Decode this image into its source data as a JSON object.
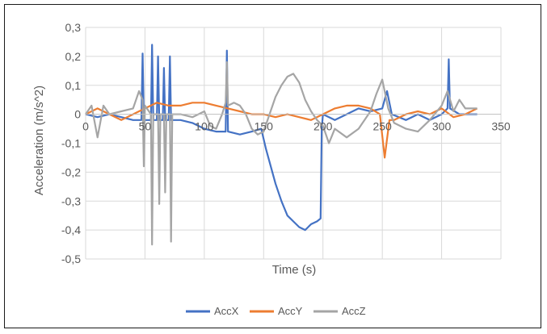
{
  "colors": {
    "AccX": "#4472C4",
    "AccY": "#ED7D31",
    "AccZ": "#A5A5A5",
    "grid": "#D9D9D9",
    "axis": "#BFBFBF"
  },
  "chart_data": {
    "type": "line",
    "title": "",
    "xlabel": "Time (s)",
    "ylabel": "Acceleration (m/s^2)",
    "xlim": [
      0,
      350
    ],
    "ylim": [
      -0.5,
      0.3
    ],
    "x_ticks": [
      0,
      50,
      100,
      150,
      200,
      250,
      300,
      350
    ],
    "x_tick_labels": [
      "0",
      "50",
      "100",
      "150",
      "200",
      "250",
      "300",
      "350"
    ],
    "y_ticks": [
      0.3,
      0.2,
      0.1,
      0,
      -0.1,
      -0.2,
      -0.3,
      -0.4,
      -0.5
    ],
    "y_tick_labels": [
      "0,3",
      "0,2",
      "0,1",
      "0",
      "-0,1",
      "-0,2",
      "-0,3",
      "-0,4",
      "-0,5"
    ],
    "grid": true,
    "legend_position": "bottom",
    "series": [
      {
        "name": "AccX",
        "color": "#4472C4",
        "points": [
          [
            0,
            0.0
          ],
          [
            10,
            -0.01
          ],
          [
            20,
            0.0
          ],
          [
            30,
            -0.01
          ],
          [
            40,
            -0.02
          ],
          [
            47,
            -0.02
          ],
          [
            48,
            0.21
          ],
          [
            49,
            -0.02
          ],
          [
            55,
            -0.02
          ],
          [
            56,
            0.24
          ],
          [
            57,
            -0.02
          ],
          [
            60,
            -0.02
          ],
          [
            61,
            0.2
          ],
          [
            62,
            -0.02
          ],
          [
            65,
            -0.02
          ],
          [
            66,
            0.16
          ],
          [
            67,
            -0.02
          ],
          [
            70,
            -0.02
          ],
          [
            71,
            0.2
          ],
          [
            72,
            -0.02
          ],
          [
            80,
            -0.02
          ],
          [
            90,
            -0.03
          ],
          [
            100,
            -0.05
          ],
          [
            110,
            -0.06
          ],
          [
            118,
            -0.06
          ],
          [
            119,
            0.22
          ],
          [
            120,
            -0.06
          ],
          [
            130,
            -0.07
          ],
          [
            140,
            -0.06
          ],
          [
            148,
            -0.05
          ],
          [
            152,
            -0.12
          ],
          [
            156,
            -0.18
          ],
          [
            160,
            -0.24
          ],
          [
            165,
            -0.3
          ],
          [
            170,
            -0.35
          ],
          [
            175,
            -0.37
          ],
          [
            180,
            -0.39
          ],
          [
            185,
            -0.4
          ],
          [
            190,
            -0.38
          ],
          [
            195,
            -0.37
          ],
          [
            198,
            -0.36
          ],
          [
            199,
            -0.05
          ],
          [
            200,
            0.0
          ],
          [
            210,
            -0.02
          ],
          [
            220,
            0.0
          ],
          [
            230,
            0.02
          ],
          [
            240,
            0.01
          ],
          [
            250,
            0.02
          ],
          [
            254,
            0.08
          ],
          [
            258,
            0.0
          ],
          [
            270,
            -0.02
          ],
          [
            280,
            0.0
          ],
          [
            290,
            -0.02
          ],
          [
            300,
            0.0
          ],
          [
            305,
            0.02
          ],
          [
            306,
            0.19
          ],
          [
            307,
            0.02
          ],
          [
            315,
            0.0
          ],
          [
            320,
            0.0
          ],
          [
            330,
            0.0
          ]
        ]
      },
      {
        "name": "AccY",
        "color": "#ED7D31",
        "points": [
          [
            0,
            0.0
          ],
          [
            10,
            0.02
          ],
          [
            20,
            0.0
          ],
          [
            30,
            -0.02
          ],
          [
            40,
            0.0
          ],
          [
            50,
            0.02
          ],
          [
            60,
            0.04
          ],
          [
            70,
            0.03
          ],
          [
            80,
            0.03
          ],
          [
            90,
            0.04
          ],
          [
            100,
            0.04
          ],
          [
            110,
            0.03
          ],
          [
            120,
            0.02
          ],
          [
            130,
            0.01
          ],
          [
            140,
            0.0
          ],
          [
            150,
            0.0
          ],
          [
            160,
            -0.01
          ],
          [
            170,
            0.0
          ],
          [
            180,
            -0.01
          ],
          [
            190,
            -0.02
          ],
          [
            200,
            0.0
          ],
          [
            210,
            0.02
          ],
          [
            220,
            0.03
          ],
          [
            230,
            0.03
          ],
          [
            240,
            0.02
          ],
          [
            248,
            0.0
          ],
          [
            252,
            -0.15
          ],
          [
            256,
            -0.02
          ],
          [
            260,
            -0.02
          ],
          [
            270,
            0.0
          ],
          [
            280,
            0.01
          ],
          [
            290,
            0.0
          ],
          [
            300,
            0.02
          ],
          [
            310,
            -0.01
          ],
          [
            320,
            0.0
          ],
          [
            330,
            0.02
          ]
        ]
      },
      {
        "name": "AccZ",
        "color": "#A5A5A5",
        "points": [
          [
            0,
            0.0
          ],
          [
            5,
            0.03
          ],
          [
            10,
            -0.08
          ],
          [
            15,
            0.03
          ],
          [
            20,
            0.0
          ],
          [
            30,
            0.01
          ],
          [
            40,
            0.02
          ],
          [
            45,
            0.08
          ],
          [
            48,
            0.05
          ],
          [
            49,
            -0.18
          ],
          [
            50,
            0.03
          ],
          [
            55,
            0.0
          ],
          [
            56,
            -0.45
          ],
          [
            57,
            0.0
          ],
          [
            61,
            0.0
          ],
          [
            62,
            -0.31
          ],
          [
            63,
            0.0
          ],
          [
            66,
            0.0
          ],
          [
            67,
            -0.27
          ],
          [
            68,
            0.0
          ],
          [
            71,
            0.0
          ],
          [
            72,
            -0.44
          ],
          [
            73,
            0.0
          ],
          [
            80,
            0.0
          ],
          [
            90,
            -0.01
          ],
          [
            100,
            0.01
          ],
          [
            105,
            -0.04
          ],
          [
            110,
            -0.05
          ],
          [
            115,
            0.0
          ],
          [
            118,
            0.04
          ],
          [
            119,
            0.18
          ],
          [
            120,
            0.03
          ],
          [
            125,
            0.04
          ],
          [
            130,
            0.03
          ],
          [
            135,
            0.0
          ],
          [
            140,
            -0.05
          ],
          [
            145,
            -0.07
          ],
          [
            150,
            -0.06
          ],
          [
            155,
            0.0
          ],
          [
            160,
            0.06
          ],
          [
            165,
            0.1
          ],
          [
            170,
            0.13
          ],
          [
            175,
            0.14
          ],
          [
            180,
            0.11
          ],
          [
            185,
            0.05
          ],
          [
            190,
            0.01
          ],
          [
            195,
            -0.02
          ],
          [
            200,
            -0.04
          ],
          [
            205,
            -0.1
          ],
          [
            210,
            -0.05
          ],
          [
            220,
            -0.08
          ],
          [
            230,
            -0.05
          ],
          [
            240,
            0.01
          ],
          [
            245,
            0.07
          ],
          [
            250,
            0.12
          ],
          [
            255,
            0.02
          ],
          [
            260,
            -0.03
          ],
          [
            270,
            -0.05
          ],
          [
            280,
            -0.06
          ],
          [
            290,
            -0.02
          ],
          [
            300,
            0.03
          ],
          [
            305,
            0.08
          ],
          [
            310,
            0.01
          ],
          [
            315,
            0.05
          ],
          [
            320,
            0.02
          ],
          [
            330,
            0.02
          ]
        ]
      }
    ]
  }
}
